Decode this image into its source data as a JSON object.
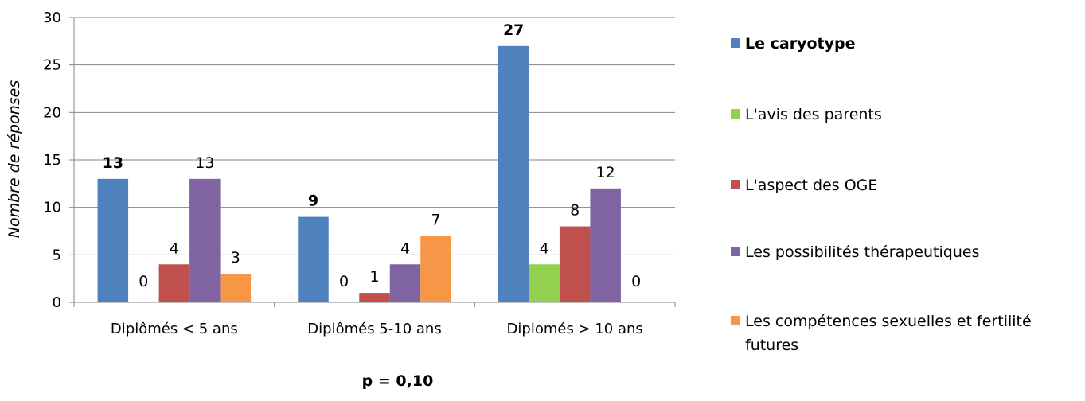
{
  "chart_data": {
    "type": "bar",
    "categories": [
      "Diplômés < 5 ans",
      "Diplômés 5-10 ans",
      "Diplomés > 10 ans"
    ],
    "series": [
      {
        "name": "Le caryotype",
        "color": "#4F81BD",
        "values": [
          13,
          9,
          27
        ],
        "bold_labels": true
      },
      {
        "name": "L'avis des parents",
        "color": "#92D050",
        "values": [
          0,
          0,
          4
        ],
        "bold_labels": false
      },
      {
        "name": "L'aspect des OGE",
        "color": "#C0504D",
        "values": [
          4,
          1,
          8
        ],
        "bold_labels": false
      },
      {
        "name": "Les possibilités thérapeutiques",
        "color": "#8064A2",
        "values": [
          13,
          4,
          12
        ],
        "bold_labels": false
      },
      {
        "name": "Les compétences sexuelles et fertilité futures",
        "color": "#F79646",
        "values": [
          3,
          7,
          0
        ],
        "bold_labels": false
      }
    ],
    "ylabel": "Nombre de réponses",
    "xlabel": "",
    "ylim": [
      0,
      30
    ],
    "yticks": [
      0,
      5,
      10,
      15,
      20,
      25,
      30
    ],
    "grid": true,
    "legend_position": "right",
    "annotation": "p = 0,10"
  }
}
